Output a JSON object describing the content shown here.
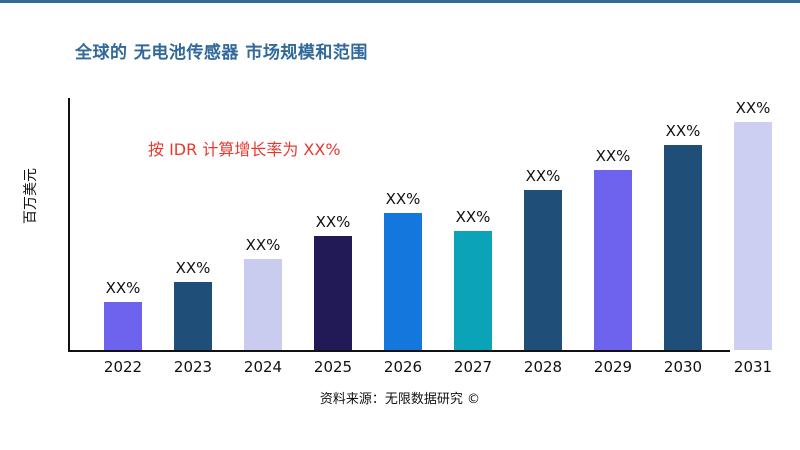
{
  "header": {
    "title": "全球的 无电池传感器 市场规模和范围"
  },
  "annotation": {
    "text": "按 IDR 计算增长率为 XX%"
  },
  "source": {
    "text": "资料来源：无限数据研究 ©"
  },
  "colors": {
    "title": "#31699A",
    "top_rule": "#31699A",
    "annotation": "#E8392F",
    "axis": "#111111",
    "text": "#111111"
  },
  "chart_data": {
    "type": "bar",
    "title": "全球的 无电池传感器 市场规模和范围",
    "ylabel": "百万美元",
    "xlabel": "",
    "categories": [
      "2022",
      "2023",
      "2024",
      "2025",
      "2026",
      "2027",
      "2028",
      "2029",
      "2030",
      "2031"
    ],
    "values": [
      21,
      30,
      40,
      50,
      60,
      52,
      70,
      79,
      90,
      100
    ],
    "values_note": "relative bar heights (percent of tallest bar); actual figures masked as XX% in the chart",
    "bar_labels": [
      "XX%",
      "XX%",
      "XX%",
      "XX%",
      "XX%",
      "XX%",
      "XX%",
      "XX%",
      "XX%",
      "XX%"
    ],
    "bar_colors": [
      "#6E63EE",
      "#1F4E79",
      "#C9CCEF",
      "#211A56",
      "#1377DD",
      "#0AA3B8",
      "#1F4E79",
      "#6E63EE",
      "#1F4E79",
      "#CCCFF2"
    ],
    "ylim": [
      0,
      100
    ],
    "grid": false,
    "legend": false
  }
}
